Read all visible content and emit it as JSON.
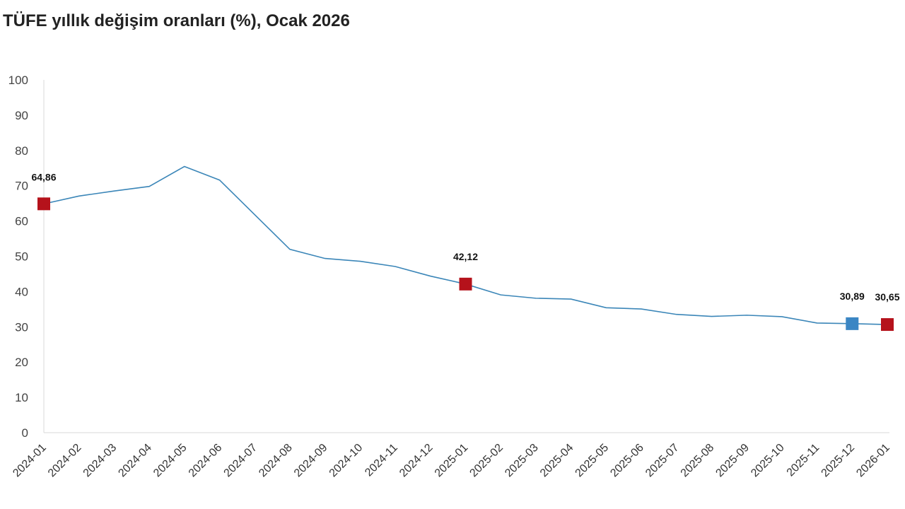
{
  "chart_data": {
    "type": "line",
    "title": "TÜFE yıllık değişim oranları (%), Ocak 2026",
    "xlabel": "",
    "ylabel": "",
    "ylim": [
      0,
      100
    ],
    "yticks": [
      0,
      10,
      20,
      30,
      40,
      50,
      60,
      70,
      80,
      90,
      100
    ],
    "grid": false,
    "categories": [
      "2024-01",
      "2024-02",
      "2024-03",
      "2024-04",
      "2024-05",
      "2024-06",
      "2024-07",
      "2024-08",
      "2024-09",
      "2024-10",
      "2024-11",
      "2024-12",
      "2025-01",
      "2025-02",
      "2025-03",
      "2025-04",
      "2025-05",
      "2025-06",
      "2025-07",
      "2025-08",
      "2025-09",
      "2025-10",
      "2025-11",
      "2025-12",
      "2026-01"
    ],
    "values": [
      64.86,
      67.07,
      68.5,
      69.8,
      75.45,
      71.6,
      61.78,
      51.97,
      49.38,
      48.58,
      47.09,
      44.38,
      42.12,
      39.05,
      38.1,
      37.86,
      35.41,
      35.05,
      33.52,
      32.95,
      33.29,
      32.87,
      31.07,
      30.89,
      30.65
    ],
    "line_color": "#3b86b8",
    "markers": [
      {
        "index": 0,
        "label": "64,86",
        "color": "#b5121b"
      },
      {
        "index": 12,
        "label": "42,12",
        "color": "#b5121b"
      },
      {
        "index": 23,
        "label": "30,89",
        "color": "#3b86c4"
      },
      {
        "index": 24,
        "label": "30,65",
        "color": "#b5121b"
      }
    ]
  }
}
